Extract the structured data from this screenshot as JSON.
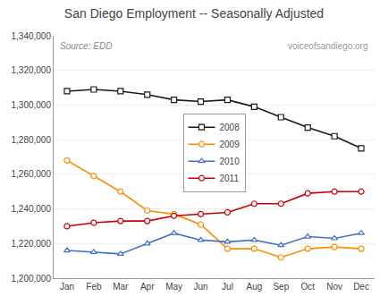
{
  "chart_data": {
    "type": "line",
    "title": "San Diego Employment -- Seasonally Adjusted",
    "annotations": [
      "Source: EDD",
      "voiceofsandiego.org"
    ],
    "categories": [
      "Jan",
      "Feb",
      "Mar",
      "Apr",
      "May",
      "Jun",
      "Jul",
      "Aug",
      "Sep",
      "Oct",
      "Nov",
      "Dec"
    ],
    "series": [
      {
        "name": "2008",
        "color": "#1a1a1a",
        "marker": "square",
        "line_style": "solid",
        "values": [
          1308000,
          1309000,
          1308000,
          1306000,
          1303000,
          1302000,
          1303000,
          1299000,
          1293000,
          1287000,
          1282000,
          1275000
        ]
      },
      {
        "name": "2009",
        "color": "#ff8c00",
        "marker": "circle",
        "line_style": "solid",
        "values": [
          1268000,
          1259000,
          1250000,
          1239000,
          1237000,
          1231000,
          1217000,
          1217000,
          1212000,
          1217000,
          1218000,
          1217000
        ]
      },
      {
        "name": "2010",
        "color": "#4472c4",
        "marker": "triangle-up",
        "line_style": "solid",
        "values": [
          1216000,
          1215000,
          1214000,
          1220000,
          1226000,
          1222000,
          1221000,
          1222000,
          1219000,
          1224000,
          1223000,
          1226000
        ]
      },
      {
        "name": "2011",
        "color": "#cc0000",
        "marker": "circle",
        "line_style": "solid",
        "values": [
          1230000,
          1232000,
          1233000,
          1233000,
          1236000,
          1237000,
          1238000,
          1243000,
          1243000,
          1249000,
          1250000,
          1250000
        ]
      }
    ],
    "ylim": [
      1200000,
      1340000
    ],
    "yticks": [
      {
        "value": 1200000,
        "label": "1,200,000"
      },
      {
        "value": 1220000,
        "label": "1,220,000"
      },
      {
        "value": 1240000,
        "label": "1,240,000"
      },
      {
        "value": 1260000,
        "label": "1,260,000"
      },
      {
        "value": 1280000,
        "label": "1,280,000"
      },
      {
        "value": 1300000,
        "label": "1,300,000"
      },
      {
        "value": 1320000,
        "label": "1,320,000"
      },
      {
        "value": 1340000,
        "label": "1,340,000"
      }
    ],
    "grid": true,
    "legend": "center"
  }
}
